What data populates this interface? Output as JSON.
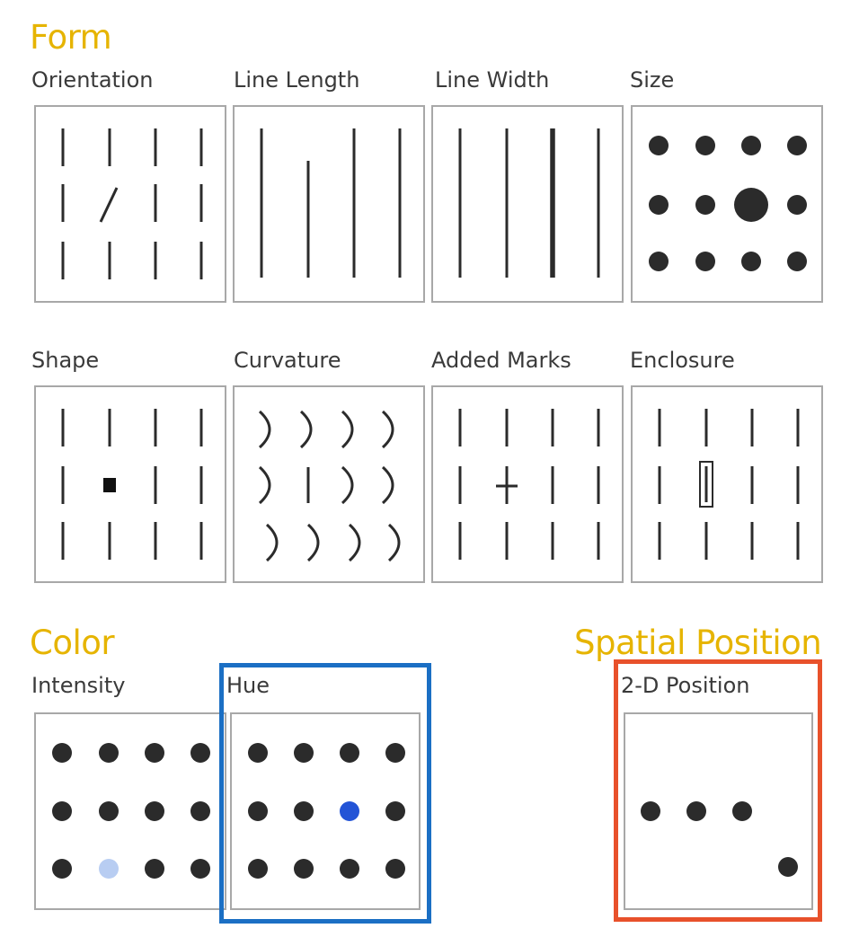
{
  "sections": {
    "form": "Form",
    "color": "Color",
    "spatial": "Spatial Position"
  },
  "panels": {
    "orientation": "Orientation",
    "line_length": "Line Length",
    "line_width": "Line Width",
    "size": "Size",
    "shape": "Shape",
    "curvature": "Curvature",
    "added_marks": "Added Marks",
    "enclosure": "Enclosure",
    "intensity": "Intensity",
    "hue": "Hue",
    "position_2d": "2-D Position"
  },
  "colors": {
    "section_title": "#e6b400",
    "mark": "#2b2b2b",
    "panel_border": "#a8a8a8",
    "intensity_light": "#b8cdf2",
    "hue_blue": "#2354d6",
    "highlight_hue": "#1b6fc4",
    "highlight_position": "#e8512b"
  }
}
